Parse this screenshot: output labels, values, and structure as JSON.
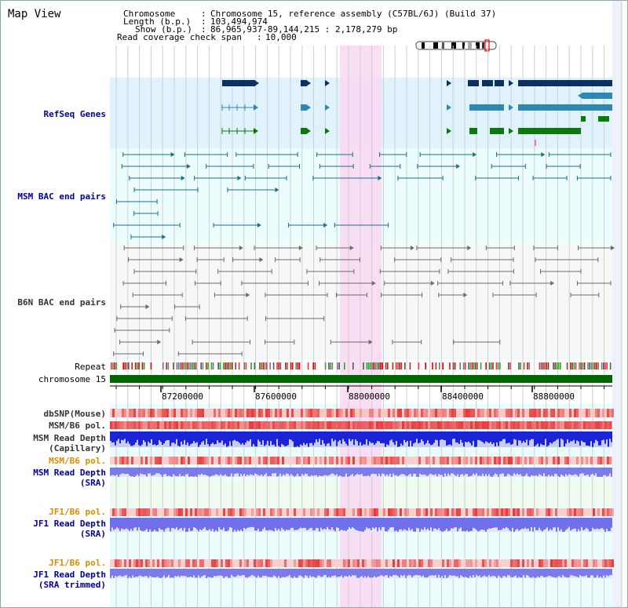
{
  "page": {
    "title": "Map View"
  },
  "header": {
    "chromosome_label": "Chromosome",
    "chromosome_value": "Chromosome 15, reference assembly (C57BL/6J) (Build 37)",
    "length_label": "Length (b.p.)",
    "length_value": "103,494,974",
    "show_label": "Show (b.p.)",
    "show_value": "86,965,937-89,144,215 : 2,178,279 bp",
    "coverage_label": "Read coverage check span",
    "coverage_value": "10,000",
    "separator": ":"
  },
  "tracks": {
    "refseq": "RefSeq Genes",
    "msm_bac": "MSM BAC end pairs",
    "b6n_bac": "B6N BAC end pairs",
    "repeat": "Repeat",
    "chromosome": "chromosome 15",
    "dbsnp": "dbSNP(Mouse)",
    "msm_b6_pol_1": "MSM/B6 pol.",
    "msm_depth_cap_1": "MSM Read Depth",
    "msm_depth_cap_2": "(Capillary)",
    "msm_b6_pol_2": "MSM/B6 pol.",
    "msm_depth_sra_1": "MSM Read Depth",
    "msm_depth_sra_2": "(SRA)",
    "jf1_b6_pol_1": "JF1/B6 pol.",
    "jf1_depth_sra_1": "JF1 Read Depth",
    "jf1_depth_sra_2": "(SRA)",
    "jf1_b6_pol_2": "JF1/B6 pol.",
    "jf1_depth_trim_1": "JF1 Read Depth",
    "jf1_depth_trim_2": "(SRA trimmed)"
  },
  "axis": {
    "ticks": [
      "87200000",
      "87600000",
      "88000000",
      "88400000",
      "88800000"
    ]
  },
  "colors": {
    "refseq_bg": "#e0f2fb",
    "msm_bac_bg": "#ecfdfd",
    "b6n_bac_bg": "#f6f8f8",
    "highlight": "#f9d8f2",
    "gene_dark": "#0b3162",
    "gene_mid": "#2f87b4",
    "gene_green": "#0a7a0a",
    "msm_pair": "#1c6d8c",
    "b6n_pair": "#6b6b6b",
    "chromosome_bar": "#006600",
    "label_blue": "#000099",
    "label_orange": "#e08a00",
    "label_gray": "#333333",
    "pol_red": "#e83a3a",
    "depth_blue": "#1a23d6",
    "depth_light": "#7777ee"
  }
}
